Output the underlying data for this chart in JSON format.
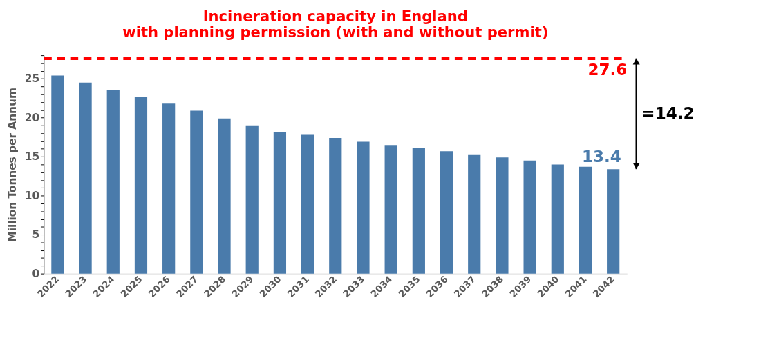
{
  "chart_data": {
    "type": "bar",
    "title": [
      "Incineration capacity in England",
      "with planning permission (with and without permit)"
    ],
    "ylabel": "Million Tonnes per Annum",
    "categories": [
      "2022",
      "2023",
      "2024",
      "2025",
      "2026",
      "2027",
      "2028",
      "2029",
      "2030",
      "2031",
      "2032",
      "2033",
      "2034",
      "2035",
      "2036",
      "2037",
      "2038",
      "2039",
      "2040",
      "2041",
      "2042"
    ],
    "series": [
      {
        "color": "#4a7bab",
        "values": [
          25.4,
          24.5,
          23.6,
          22.7,
          21.8,
          20.9,
          19.9,
          19.0,
          18.1,
          17.8,
          17.4,
          16.9,
          16.5,
          16.1,
          15.7,
          15.2,
          14.9,
          14.5,
          14.0,
          13.7,
          13.4
        ],
        "value_labels": [
          null,
          null,
          null,
          null,
          null,
          null,
          null,
          null,
          null,
          null,
          null,
          null,
          null,
          null,
          null,
          null,
          null,
          null,
          null,
          null,
          "13.4"
        ]
      }
    ],
    "ylim": [
      0,
      28
    ],
    "yticks": [
      0,
      {
        "value": 1,
        "label": null
      },
      {
        "value": 2,
        "label": null
      },
      {
        "value": 3,
        "label": null
      },
      {
        "value": 4,
        "label": null
      },
      5,
      {
        "value": 6,
        "label": null
      },
      {
        "value": 7,
        "label": null
      },
      {
        "value": 8,
        "label": null
      },
      {
        "value": 9,
        "label": null
      },
      10,
      {
        "value": 11,
        "label": null
      },
      {
        "value": 12,
        "label": null
      },
      {
        "value": 13,
        "label": null
      },
      {
        "value": 14,
        "label": null
      },
      15,
      {
        "value": 16,
        "label": null
      },
      {
        "value": 17,
        "label": null
      },
      {
        "value": 18,
        "label": null
      },
      {
        "value": 19,
        "label": null
      },
      20,
      {
        "value": 21,
        "label": null
      },
      {
        "value": 22,
        "label": null
      },
      {
        "value": 23,
        "label": null
      },
      {
        "value": 24,
        "label": null
      },
      25,
      {
        "value": 26,
        "label": null
      },
      {
        "value": 27,
        "label": null
      },
      {
        "value": 28,
        "label": null
      }
    ],
    "ref_lines": [
      {
        "axis": "y",
        "value": 27.6,
        "label": "27.6",
        "color": "#ff0000",
        "line_style": "dashed"
      }
    ],
    "annotations": [
      "=14.2"
    ],
    "grid": false
  }
}
